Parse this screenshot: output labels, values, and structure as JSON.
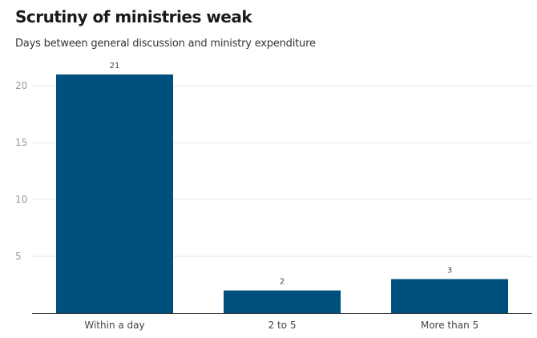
{
  "chart_data": {
    "type": "bar",
    "title": "Scrutiny of ministries weak",
    "subtitle": "Days between general discussion and ministry expenditure",
    "categories": [
      "Within a day",
      "2 to 5",
      "More than 5"
    ],
    "values": [
      21,
      2,
      3
    ],
    "data_labels": [
      "21",
      "2",
      "3"
    ],
    "yticks": [
      5,
      10,
      15,
      20
    ],
    "ylim": [
      0,
      21
    ],
    "grid": true,
    "legend": "none",
    "bar_color": "#00507d"
  }
}
